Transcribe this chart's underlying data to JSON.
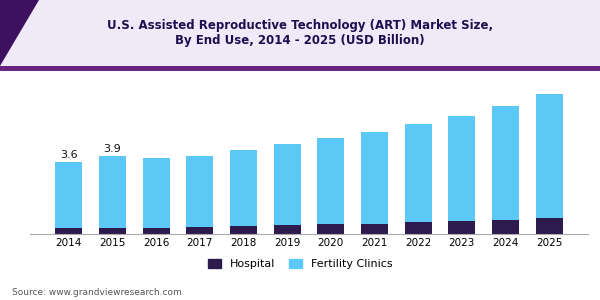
{
  "title_line1": "U.S. Assisted Reproductive Technology (ART) Market Size,",
  "title_line2": "By End Use, 2014 - 2025 (USD Billion)",
  "years": [
    2014,
    2015,
    2016,
    2017,
    2018,
    2019,
    2020,
    2021,
    2022,
    2023,
    2024,
    2025
  ],
  "hospital": [
    0.28,
    0.3,
    0.32,
    0.35,
    0.4,
    0.44,
    0.48,
    0.52,
    0.58,
    0.64,
    0.7,
    0.78
  ],
  "fertility_clinics": [
    3.32,
    3.6,
    3.48,
    3.55,
    3.8,
    4.06,
    4.32,
    4.58,
    4.92,
    5.26,
    5.7,
    6.22
  ],
  "bar_color_hospital": "#2d1b4e",
  "bar_color_fertility": "#5bc8f5",
  "title_bg_color": "#f0eaf8",
  "title_text_color": "#1a1050",
  "header_stripe_color": "#6a2580",
  "bg_color": "#ffffff",
  "label_2014": "3.6",
  "label_2015": "3.9",
  "source_text": "Source: www.grandviewresearch.com",
  "ylim_max": 7.8,
  "legend_hospital": "Hospital",
  "legend_fertility": "Fertility Clinics",
  "triangle_color": "#3d1060"
}
